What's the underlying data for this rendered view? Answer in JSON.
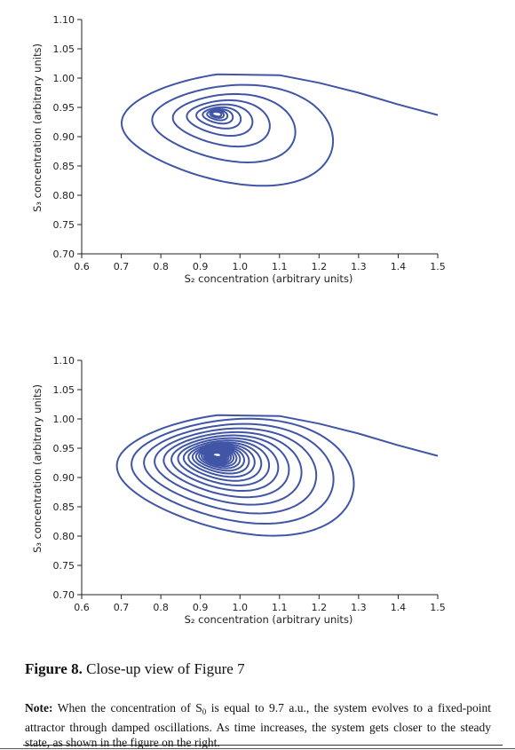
{
  "chart_data": [
    {
      "type": "line",
      "title": "",
      "xlabel": "S₂ concentration (arbitrary units)",
      "ylabel": "S₃ concentration (arbitrary units)",
      "xlim": [
        0.6,
        1.5
      ],
      "ylim": [
        0.7,
        1.1
      ],
      "xticks": [
        "0.6",
        "0.7",
        "0.8",
        "0.9",
        "1.0",
        "1.1",
        "1.2",
        "1.3",
        "1.4",
        "1.5"
      ],
      "yticks": [
        "0.70",
        "0.75",
        "0.80",
        "0.85",
        "0.90",
        "0.95",
        "1.00",
        "1.05",
        "1.10"
      ],
      "color": "#4055a6",
      "grid": false,
      "series": [
        {
          "type": "damped spiral trajectory to fixed point",
          "entry": [
            [
              1.5,
              0.937
            ],
            [
              1.4,
              0.955
            ],
            [
              1.3,
              0.975
            ],
            [
              1.2,
              0.992
            ],
            [
              1.1,
              1.005
            ]
          ],
          "center": [
            0.94,
            0.94
          ],
          "first_loop_extent": {
            "x": [
              0.68,
              1.33
            ],
            "y": [
              0.795,
              1.01
            ]
          },
          "loops": 9
        }
      ]
    },
    {
      "type": "line",
      "title": "",
      "xlabel": "S₂ concentration (arbitrary units)",
      "ylabel": "S₃ concentration (arbitrary units)",
      "xlim": [
        0.6,
        1.5
      ],
      "ylim": [
        0.7,
        1.1
      ],
      "xticks": [
        "0.6",
        "0.7",
        "0.8",
        "0.9",
        "1.0",
        "1.1",
        "1.2",
        "1.3",
        "1.4",
        "1.5"
      ],
      "yticks": [
        "0.70",
        "0.75",
        "0.80",
        "0.85",
        "0.90",
        "0.95",
        "1.00",
        "1.05",
        "1.10"
      ],
      "color": "#4055a6",
      "grid": false,
      "series": [
        {
          "type": "damped spiral trajectory to fixed point",
          "entry": [
            [
              1.5,
              0.937
            ],
            [
              1.4,
              0.955
            ],
            [
              1.3,
              0.975
            ],
            [
              1.2,
              0.992
            ],
            [
              1.1,
              1.005
            ]
          ],
          "center": [
            0.94,
            0.94
          ],
          "first_loop_extent": {
            "x": [
              0.68,
              1.33
            ],
            "y": [
              0.795,
              1.01
            ]
          },
          "loops": 22
        }
      ]
    }
  ],
  "caption": {
    "label": "Figure 8.",
    "text": "Close-up view of Figure 7"
  },
  "note": {
    "label": "Note:",
    "text_before": "When the concentration of S",
    "subscript": "0",
    "text_after": "is equal to 9.7 a.u., the system evolves to a fixed-point attractor through damped oscillations. As time increases, the system gets closer to the steady state, as shown in the figure on the right."
  }
}
